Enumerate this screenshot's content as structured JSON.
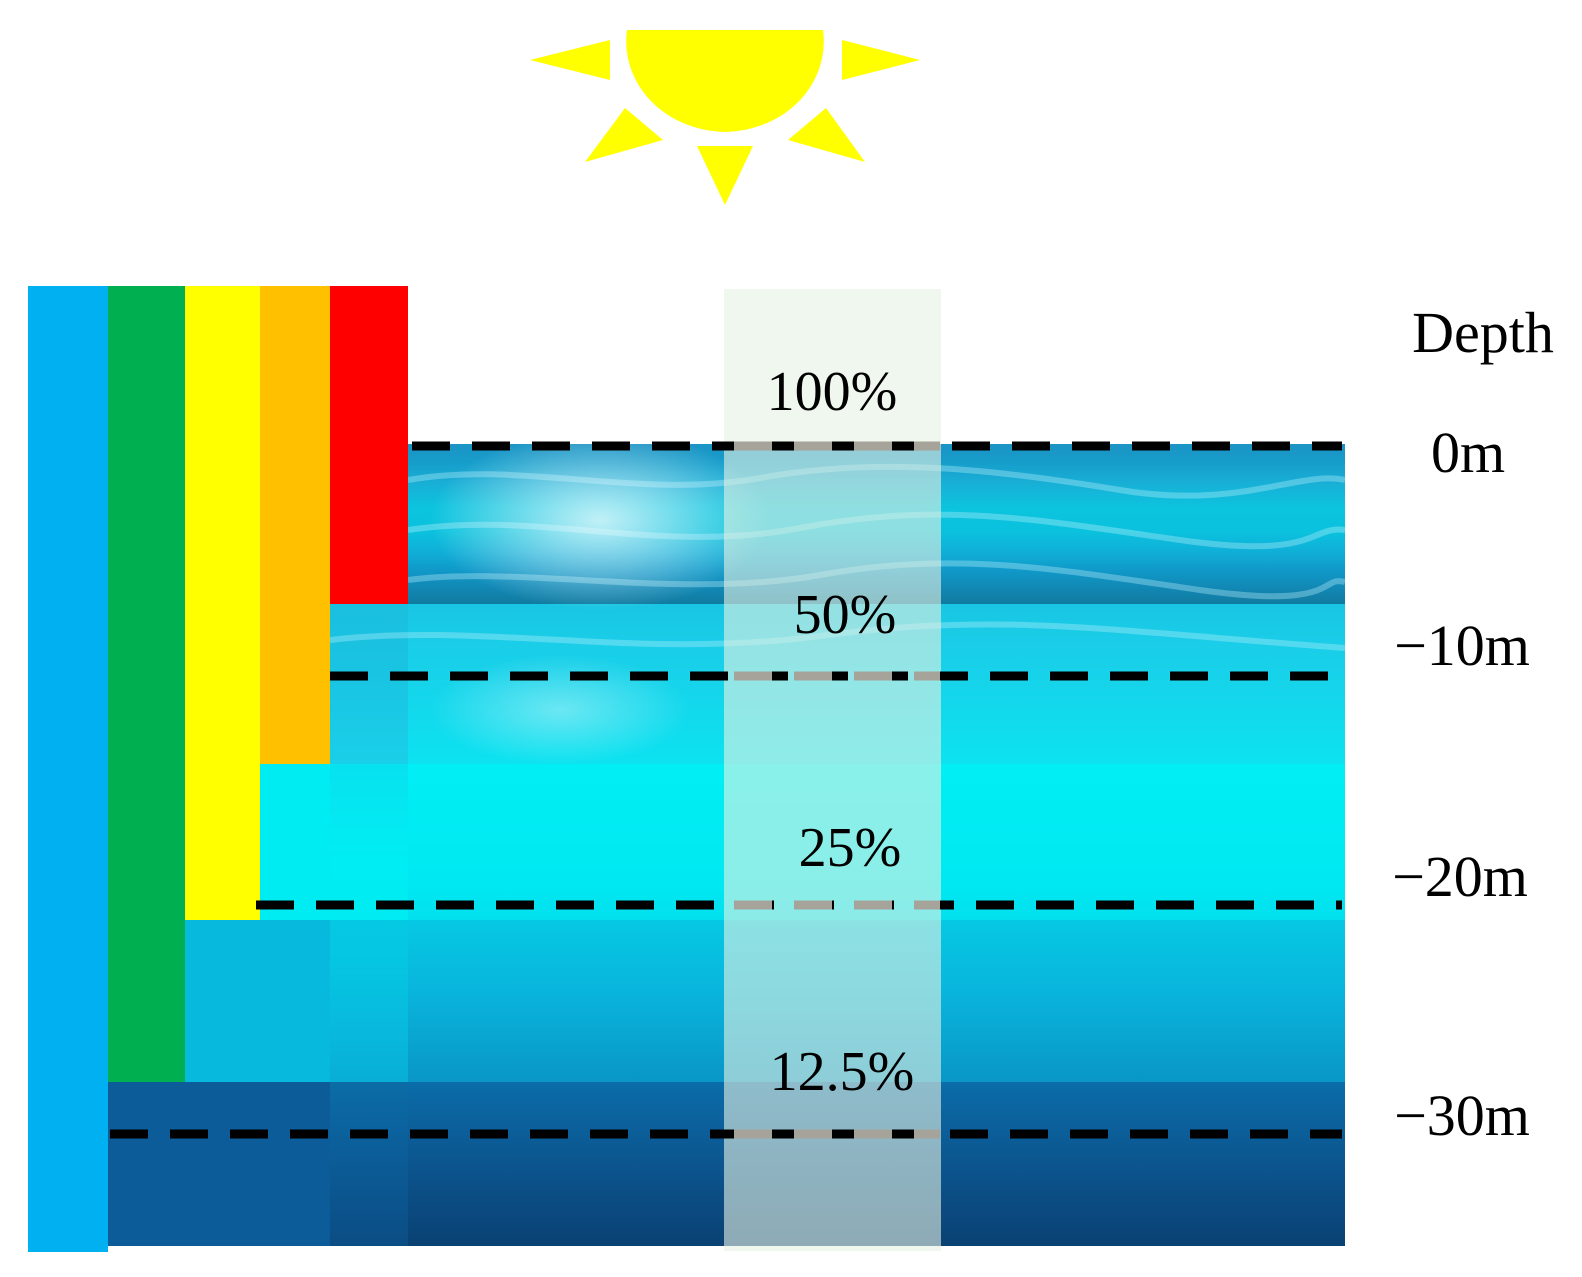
{
  "depth_header": "Depth",
  "depth_labels": [
    "0m",
    "−10m",
    "−20m",
    "−30m"
  ],
  "intensity_labels": [
    "100%",
    "50%",
    "25%",
    "12.5%"
  ],
  "colors": {
    "violet_blue": "#00b0f0",
    "green": "#00b050",
    "yellow": "#ffff00",
    "orange": "#ffc000",
    "red": "#ff0000",
    "sun": "#ffff00",
    "water_top": "#0b78a8",
    "water_mid": "#00eef5",
    "water_deep": "#0a2f5c",
    "light_column": "#e6f2e2"
  },
  "icons": {
    "sun": "sun-icon"
  }
}
